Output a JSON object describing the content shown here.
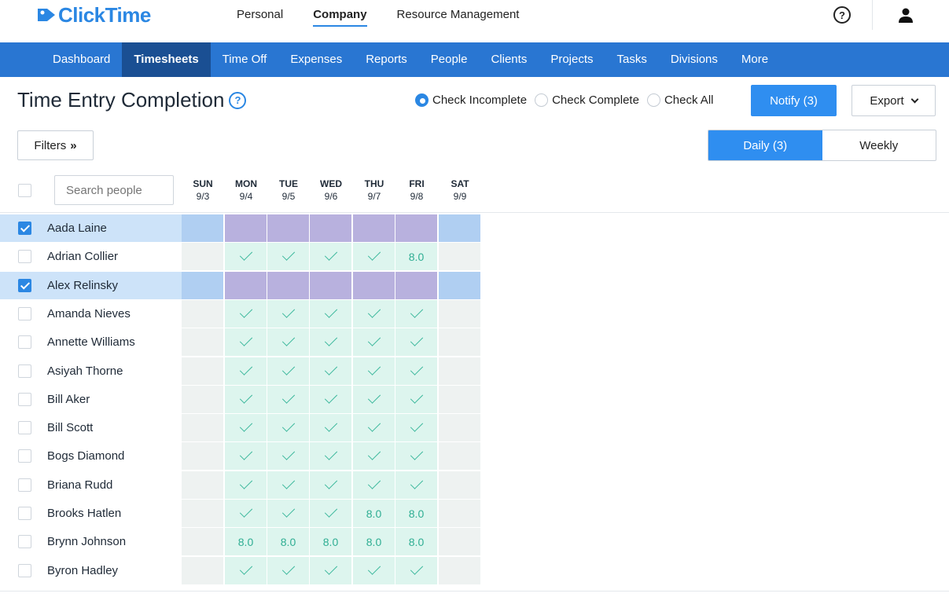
{
  "brand": {
    "name": "ClickTime",
    "color": "#2b87e3"
  },
  "top_nav": [
    {
      "label": "Personal",
      "active": false
    },
    {
      "label": "Company",
      "active": true
    },
    {
      "label": "Resource Management",
      "active": false
    }
  ],
  "header_icons": {
    "help": "help-circle-icon",
    "help_glyph": "?",
    "user": "user-icon"
  },
  "main_nav": [
    {
      "label": "Dashboard",
      "active": false
    },
    {
      "label": "Timesheets",
      "active": true
    },
    {
      "label": "Time Off",
      "active": false
    },
    {
      "label": "Expenses",
      "active": false
    },
    {
      "label": "Reports",
      "active": false
    },
    {
      "label": "People",
      "active": false
    },
    {
      "label": "Clients",
      "active": false
    },
    {
      "label": "Projects",
      "active": false
    },
    {
      "label": "Tasks",
      "active": false
    },
    {
      "label": "Divisions",
      "active": false
    },
    {
      "label": "More",
      "active": false
    }
  ],
  "page": {
    "title": "Time Entry Completion",
    "title_help_glyph": "?",
    "radio_options": [
      {
        "label": "Check Incomplete",
        "checked": true
      },
      {
        "label": "Check Complete",
        "checked": false
      },
      {
        "label": "Check All",
        "checked": false
      }
    ],
    "notify_label": "Notify (3)",
    "export_label": "Export",
    "filters_label": "Filters",
    "filters_glyph": "»",
    "view_tabs": [
      {
        "label": "Daily (3)",
        "active": true
      },
      {
        "label": "Weekly",
        "active": false
      }
    ],
    "search_placeholder": "Search people"
  },
  "days": [
    {
      "name": "SUN",
      "date": "9/3"
    },
    {
      "name": "MON",
      "date": "9/4"
    },
    {
      "name": "TUE",
      "date": "9/5"
    },
    {
      "name": "WED",
      "date": "9/6"
    },
    {
      "name": "THU",
      "date": "9/7"
    },
    {
      "name": "FRI",
      "date": "9/8"
    },
    {
      "name": "SAT",
      "date": "9/9"
    }
  ],
  "people": [
    {
      "name": "Aada Laine",
      "checked": true,
      "cells": [
        "",
        "",
        "",
        "",
        "",
        "",
        ""
      ]
    },
    {
      "name": "Adrian Collier",
      "checked": false,
      "cells": [
        "",
        "check",
        "check",
        "check",
        "check",
        "8.0",
        ""
      ]
    },
    {
      "name": "Alex Relinsky",
      "checked": true,
      "cells": [
        "",
        "",
        "",
        "",
        "",
        "",
        ""
      ]
    },
    {
      "name": "Amanda Nieves",
      "checked": false,
      "cells": [
        "",
        "check",
        "check",
        "check",
        "check",
        "check",
        ""
      ]
    },
    {
      "name": "Annette Williams",
      "checked": false,
      "cells": [
        "",
        "check",
        "check",
        "check",
        "check",
        "check",
        ""
      ]
    },
    {
      "name": "Asiyah Thorne",
      "checked": false,
      "cells": [
        "",
        "check",
        "check",
        "check",
        "check",
        "check",
        ""
      ]
    },
    {
      "name": "Bill Aker",
      "checked": false,
      "cells": [
        "",
        "check",
        "check",
        "check",
        "check",
        "check",
        ""
      ]
    },
    {
      "name": "Bill Scott",
      "checked": false,
      "cells": [
        "",
        "check",
        "check",
        "check",
        "check",
        "check",
        ""
      ]
    },
    {
      "name": "Bogs Diamond",
      "checked": false,
      "cells": [
        "",
        "check",
        "check",
        "check",
        "check",
        "check",
        ""
      ]
    },
    {
      "name": "Briana Rudd",
      "checked": false,
      "cells": [
        "",
        "check",
        "check",
        "check",
        "check",
        "check",
        ""
      ]
    },
    {
      "name": "Brooks Hatlen",
      "checked": false,
      "cells": [
        "",
        "check",
        "check",
        "check",
        "8.0",
        "8.0",
        ""
      ]
    },
    {
      "name": "Brynn Johnson",
      "checked": false,
      "cells": [
        "",
        "8.0",
        "8.0",
        "8.0",
        "8.0",
        "8.0",
        ""
      ]
    },
    {
      "name": "Byron Hadley",
      "checked": false,
      "cells": [
        "",
        "check",
        "check",
        "check",
        "check",
        "check",
        ""
      ]
    }
  ],
  "colors": {
    "nav_blue": "#2976d2",
    "nav_active": "#1a4f93",
    "button_blue": "#2f8ef0",
    "complete_green": "#2fae93",
    "selected_row": "#cde3f9",
    "selected_weekday": "#b8b1de",
    "selected_weekend": "#b0cff2"
  }
}
